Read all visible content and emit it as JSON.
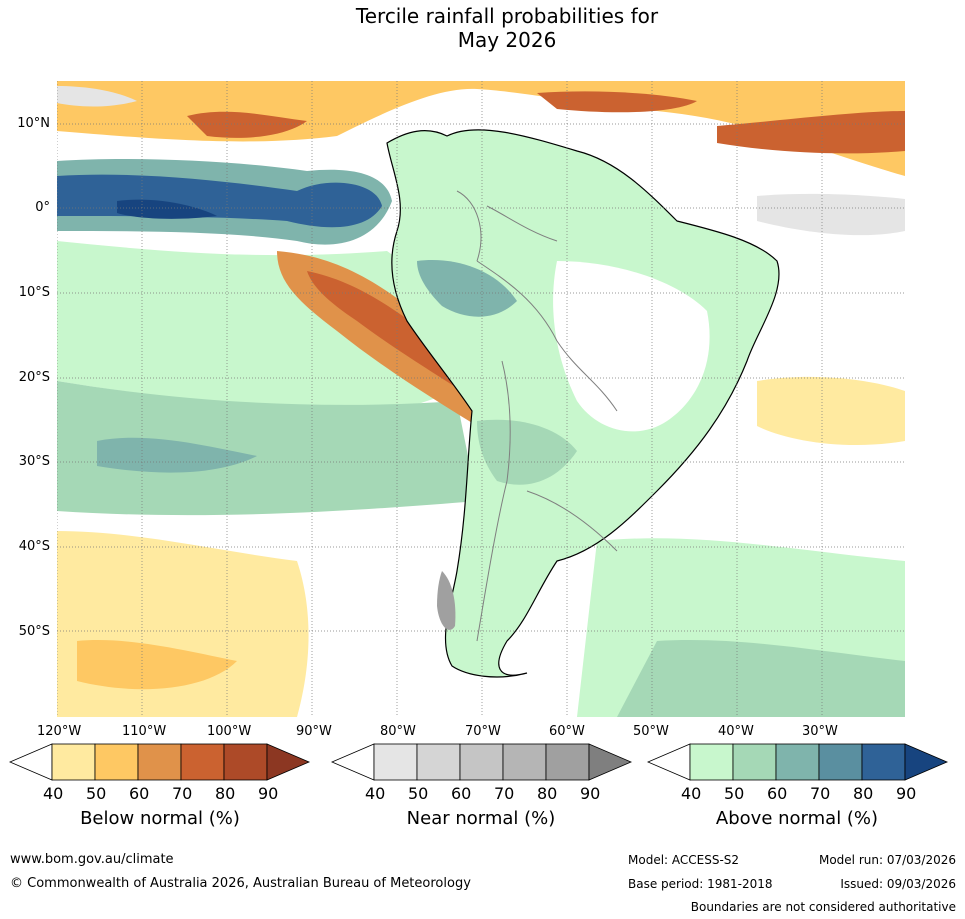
{
  "title": {
    "line1": "Tercile rainfall probabilities for",
    "line2": "May 2026"
  },
  "map": {
    "latitude_labels": [
      "10°N",
      "0°",
      "10°S",
      "20°S",
      "30°S",
      "40°S",
      "50°S"
    ],
    "longitude_labels": [
      "120°W",
      "110°W",
      "100°W",
      "90°W",
      "80°W",
      "70°W",
      "60°W",
      "50°W",
      "40°W",
      "30°W"
    ],
    "colors": {
      "coast": "#000000",
      "borders": "#7f7f7f",
      "gridlines": "#777777"
    }
  },
  "colorbars": [
    {
      "name": "below",
      "title": "Below normal (%)",
      "ticks": [
        "40",
        "50",
        "60",
        "70",
        "80",
        "90"
      ],
      "colors": [
        "#ffeaa0",
        "#fec863",
        "#e0924a",
        "#cb6230",
        "#ad4a28",
        "#8c3722"
      ]
    },
    {
      "name": "near",
      "title": "Near normal (%)",
      "ticks": [
        "40",
        "50",
        "60",
        "70",
        "80",
        "90"
      ],
      "colors": [
        "#e5e5e5",
        "#d5d5d5",
        "#c5c5c5",
        "#b5b5b5",
        "#a0a0a0",
        "#7f7f7f"
      ]
    },
    {
      "name": "above",
      "title": "Above normal (%)",
      "ticks": [
        "40",
        "50",
        "60",
        "70",
        "80",
        "90"
      ],
      "colors": [
        "#c8f7cd",
        "#a5d8b6",
        "#7fb4ac",
        "#5a8fa0",
        "#2f6297",
        "#17447f"
      ]
    }
  ],
  "footer": {
    "website": "www.bom.gov.au/climate",
    "copyright": "© Commonwealth of Australia 2026, Australian Bureau of Meteorology",
    "model": "Model: ACCESS-S2",
    "model_run": "Model run: 07/03/2026",
    "base_period": "Base period: 1981-2018",
    "issued": "Issued: 09/03/2026",
    "disclaimer": "Boundaries are not considered authoritative"
  }
}
